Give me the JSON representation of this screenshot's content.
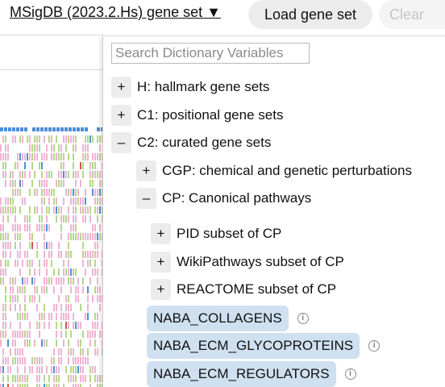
{
  "header": {
    "gene_set_label": "MSigDB (2023.2.Hs) gene set ▼",
    "load_button": "Load gene set",
    "clear_button": "Clear"
  },
  "dropdown": {
    "search_placeholder": "Search Dictionary Variables",
    "tree": {
      "h": {
        "toggle": "+",
        "label": "H: hallmark gene sets"
      },
      "c1": {
        "toggle": "+",
        "label": "C1: positional gene sets"
      },
      "c2": {
        "toggle": "–",
        "label": "C2: curated gene sets"
      },
      "cgp": {
        "toggle": "+",
        "label": "CGP: chemical and genetic perturbations"
      },
      "cp": {
        "toggle": "–",
        "label": "CP: Canonical pathways"
      },
      "pid": {
        "toggle": "+",
        "label": "PID subset of CP"
      },
      "wiki": {
        "toggle": "+",
        "label": "WikiPathways subset of CP"
      },
      "reactome": {
        "toggle": "+",
        "label": "REACTOME subset of CP"
      }
    },
    "terms": [
      {
        "label": "NABA_COLLAGENS",
        "info": "i"
      },
      {
        "label": "NABA_ECM_GLYCOPROTEINS",
        "info": "i"
      },
      {
        "label": "NABA_ECM_REGULATORS",
        "info": "i"
      }
    ]
  },
  "heatmap": {
    "colors": {
      "pink": "#eeb4d2",
      "green": "#b4d88a",
      "blue": "#4f8fd8",
      "red": "#d9534f",
      "orange": "#e8a23c"
    }
  }
}
